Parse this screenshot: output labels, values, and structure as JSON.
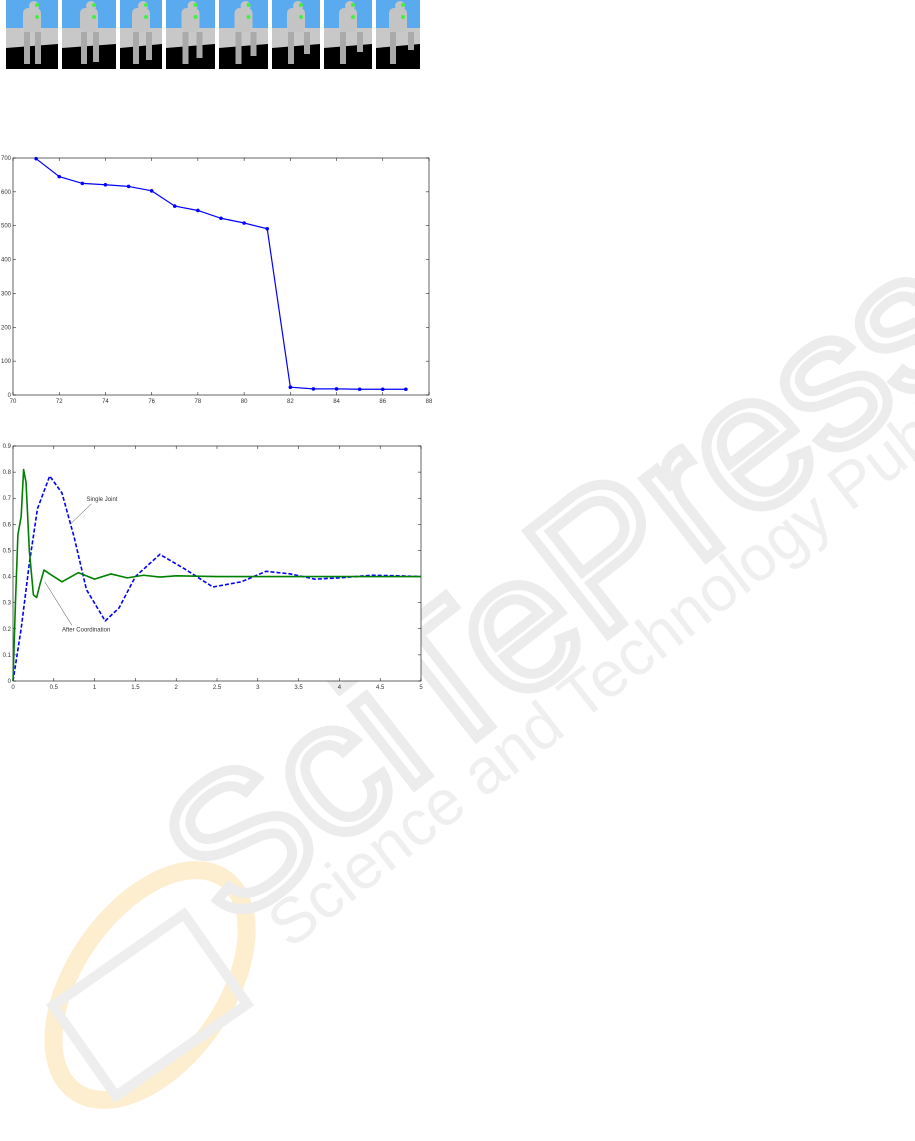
{
  "figure_strip": {
    "frames": [
      "frame-1",
      "frame-2",
      "frame-3",
      "frame-4",
      "frame-5",
      "frame-6",
      "frame-7",
      "frame-8"
    ],
    "colors": {
      "sky": "#5aaaf0",
      "wall": "#c8c8c8",
      "floor": "#000000",
      "robot": "#c4c4c4",
      "marker": "#44ee44"
    }
  },
  "watermark": {
    "text_main": "SciTePress",
    "text_sub": "Science and Technology Publications",
    "color": "#eeeeee",
    "logo_color": "#fbe3b0"
  },
  "chart_data": [
    {
      "type": "line",
      "x": [
        71,
        72,
        73,
        74,
        75,
        76,
        77,
        78,
        79,
        80,
        81,
        82,
        83,
        84,
        85,
        86,
        87
      ],
      "series": [
        {
          "values": [
            698,
            645,
            625,
            621,
            616,
            603,
            558,
            545,
            522,
            508,
            491,
            23,
            18,
            18,
            17,
            17,
            17
          ],
          "color": "#0000ff",
          "marker": "star"
        }
      ],
      "xlim": [
        70,
        88
      ],
      "ylim": [
        0,
        700
      ],
      "xticks": [
        "70",
        "72",
        "74",
        "76",
        "78",
        "80",
        "82",
        "84",
        "86",
        "88"
      ],
      "yticks": [
        "0",
        "100",
        "200",
        "300",
        "400",
        "500",
        "600",
        "700"
      ],
      "grid": false
    },
    {
      "type": "line",
      "xlim": [
        0,
        5
      ],
      "ylim": [
        0,
        0.9
      ],
      "xticks": [
        "0",
        "0.5",
        "1",
        "1.5",
        "2",
        "2.5",
        "3",
        "3.5",
        "4",
        "4.5",
        "5"
      ],
      "yticks": [
        "0",
        "0.1",
        "0.2",
        "0.3",
        "0.4",
        "0.5",
        "0.6",
        "0.7",
        "0.8",
        "0.9"
      ],
      "grid": false,
      "series": [
        {
          "name": "Single Joint",
          "color": "#0000ff",
          "style": "dashed",
          "x": [
            0,
            0.1,
            0.2,
            0.3,
            0.45,
            0.6,
            0.75,
            0.9,
            1.13,
            1.3,
            1.5,
            1.8,
            2.1,
            2.45,
            2.8,
            3.1,
            3.4,
            3.7,
            4.0,
            4.4,
            4.7,
            5
          ],
          "y": [
            0,
            0.2,
            0.45,
            0.66,
            0.785,
            0.72,
            0.55,
            0.35,
            0.23,
            0.28,
            0.4,
            0.485,
            0.43,
            0.36,
            0.38,
            0.42,
            0.41,
            0.39,
            0.395,
            0.405,
            0.403,
            0.4
          ]
        },
        {
          "name": "After Coordination",
          "color": "#008000",
          "style": "solid",
          "x": [
            0,
            0.03,
            0.06,
            0.1,
            0.13,
            0.16,
            0.2,
            0.25,
            0.29,
            0.33,
            0.38,
            0.45,
            0.6,
            0.8,
            1.0,
            1.2,
            1.4,
            1.6,
            1.8,
            2.0,
            2.5,
            5
          ],
          "y": [
            0,
            0.3,
            0.56,
            0.63,
            0.81,
            0.76,
            0.5,
            0.33,
            0.32,
            0.37,
            0.425,
            0.41,
            0.38,
            0.415,
            0.39,
            0.41,
            0.395,
            0.405,
            0.398,
            0.403,
            0.4,
            0.4
          ]
        }
      ],
      "annotations": [
        {
          "text": "Single Joint",
          "x": 0.9,
          "y": 0.69,
          "arrow_to": [
            0.7,
            0.6
          ]
        },
        {
          "text": "After Coordination",
          "x": 0.6,
          "y": 0.19,
          "arrow_to": [
            0.39,
            0.38
          ]
        }
      ]
    }
  ]
}
